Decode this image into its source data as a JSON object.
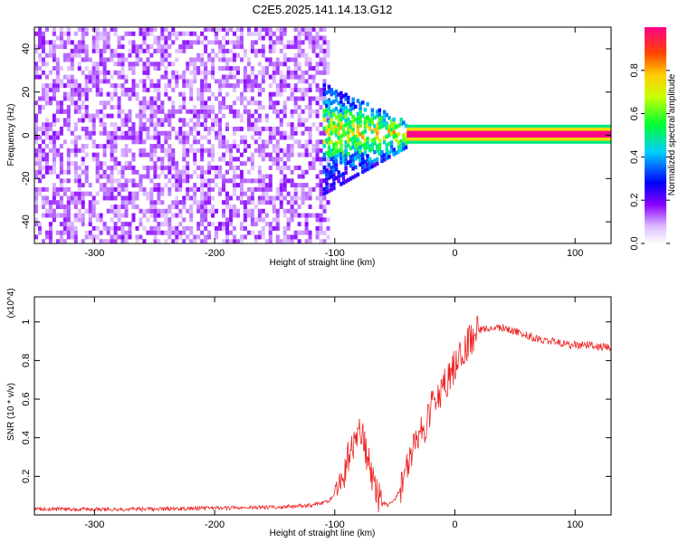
{
  "title": "C2E5.2025.141.14.13.G12",
  "chart_data": [
    {
      "type": "heatmap",
      "xlabel": "Height of straight line (km)",
      "ylabel": "Frequency (Hz)",
      "xlim": [
        -350,
        130
      ],
      "ylim": [
        -50,
        50
      ],
      "x_ticks": [
        -300,
        -200,
        -100,
        0,
        100
      ],
      "y_ticks": [
        -40,
        -20,
        0,
        20,
        40
      ],
      "colorbar": {
        "label": "Normalized spectral amplitude",
        "range": [
          0.0,
          1.0
        ],
        "ticks": [
          0.0,
          0.2,
          0.4,
          0.6,
          0.8
        ],
        "colormap": [
          "#ffffff",
          "#8800ff",
          "#0000ff",
          "#00ffff",
          "#00ff00",
          "#ffff00",
          "#ff8800",
          "#ff0000",
          "#ff00aa"
        ]
      },
      "features": [
        {
          "name": "noise field",
          "x_range": [
            -350,
            -105
          ],
          "freq_range": [
            -50,
            50
          ],
          "amplitude": 0.15
        },
        {
          "name": "onset burst",
          "x_range": [
            -110,
            -40
          ],
          "freq_range": [
            -20,
            25
          ],
          "amplitude": 0.35
        },
        {
          "name": "carrier line",
          "x_range": [
            -40,
            130
          ],
          "freq_center": 0.5,
          "freq_width": 2,
          "amplitude": 1.0
        }
      ]
    },
    {
      "type": "line",
      "xlabel": "Height of straight line (km)",
      "ylabel": "SNR (10 * v/v)",
      "y_multiplier": "(x10^4)",
      "xlim": [
        -350,
        130
      ],
      "ylim": [
        0,
        1.13
      ],
      "x_ticks": [
        -300,
        -200,
        -100,
        0,
        100
      ],
      "y_ticks": [
        0.2,
        0.4,
        0.6,
        0.8,
        1.0
      ],
      "series": [
        {
          "color": "#ee2222",
          "x": [
            -350,
            -300,
            -250,
            -200,
            -150,
            -120,
            -105,
            -95,
            -88,
            -82,
            -78,
            -75,
            -70,
            -65,
            -60,
            -55,
            -50,
            -45,
            -40,
            -35,
            -30,
            -25,
            -20,
            -15,
            -10,
            -5,
            0,
            5,
            10,
            15,
            20,
            30,
            40,
            50,
            60,
            70,
            80,
            90,
            100,
            110,
            120,
            130
          ],
          "y": [
            0.03,
            0.03,
            0.03,
            0.035,
            0.04,
            0.05,
            0.07,
            0.16,
            0.32,
            0.4,
            0.43,
            0.36,
            0.22,
            0.1,
            0.06,
            0.05,
            0.08,
            0.14,
            0.24,
            0.32,
            0.4,
            0.46,
            0.55,
            0.62,
            0.66,
            0.72,
            0.77,
            0.82,
            0.88,
            0.93,
            0.96,
            0.97,
            0.97,
            0.95,
            0.93,
            0.91,
            0.9,
            0.89,
            0.88,
            0.88,
            0.87,
            0.87
          ]
        }
      ]
    }
  ]
}
